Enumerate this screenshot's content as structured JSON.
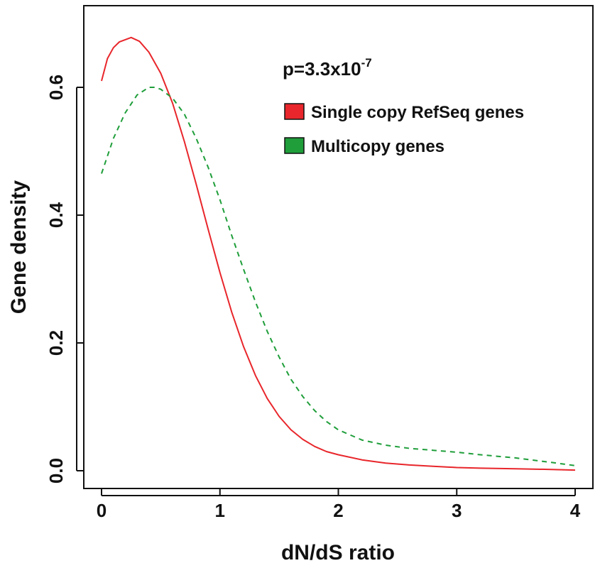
{
  "chart_data": {
    "type": "line",
    "title": "",
    "xlabel": "dN/dS ratio",
    "ylabel": "Gene density",
    "xlim": [
      0,
      4
    ],
    "ylim": [
      0,
      0.7
    ],
    "x_ticks": [
      0,
      1,
      2,
      3,
      4
    ],
    "x_tick_labels": [
      "0",
      "1",
      "2",
      "3",
      "4"
    ],
    "y_ticks": [
      0.0,
      0.2,
      0.4,
      0.6
    ],
    "y_tick_labels": [
      "0.0",
      "0.2",
      "0.4",
      "0.6"
    ],
    "grid": false,
    "legend_position": "top-right",
    "annotation": {
      "base": "p=3.3x10",
      "exponent": "-7"
    },
    "series": [
      {
        "name": "Single copy RefSeq genes",
        "color": "#e8262b",
        "line_style": "solid",
        "x": [
          0,
          0.05,
          0.1,
          0.15,
          0.25,
          0.32,
          0.4,
          0.5,
          0.6,
          0.7,
          0.8,
          0.9,
          1.0,
          1.1,
          1.2,
          1.3,
          1.4,
          1.5,
          1.6,
          1.7,
          1.8,
          1.9,
          2.0,
          2.2,
          2.4,
          2.6,
          2.8,
          3.0,
          3.2,
          3.5,
          3.8,
          4.0
        ],
        "y": [
          0.61,
          0.645,
          0.662,
          0.671,
          0.678,
          0.672,
          0.655,
          0.622,
          0.575,
          0.515,
          0.448,
          0.378,
          0.31,
          0.248,
          0.194,
          0.149,
          0.113,
          0.085,
          0.064,
          0.049,
          0.038,
          0.03,
          0.025,
          0.017,
          0.012,
          0.009,
          0.007,
          0.005,
          0.004,
          0.003,
          0.002,
          0.001
        ]
      },
      {
        "name": "Multicopy genes",
        "color": "#1f9e3a",
        "line_style": "dashed",
        "x": [
          0,
          0.1,
          0.2,
          0.3,
          0.4,
          0.45,
          0.5,
          0.6,
          0.7,
          0.8,
          0.9,
          1.0,
          1.1,
          1.2,
          1.3,
          1.4,
          1.5,
          1.6,
          1.7,
          1.8,
          1.9,
          2.0,
          2.2,
          2.4,
          2.6,
          2.8,
          3.0,
          3.2,
          3.5,
          3.8,
          4.0
        ],
        "y": [
          0.465,
          0.52,
          0.56,
          0.588,
          0.6,
          0.6,
          0.597,
          0.583,
          0.558,
          0.52,
          0.475,
          0.424,
          0.368,
          0.315,
          0.264,
          0.218,
          0.178,
          0.143,
          0.116,
          0.094,
          0.077,
          0.064,
          0.048,
          0.04,
          0.035,
          0.032,
          0.029,
          0.025,
          0.02,
          0.013,
          0.008
        ]
      }
    ]
  }
}
